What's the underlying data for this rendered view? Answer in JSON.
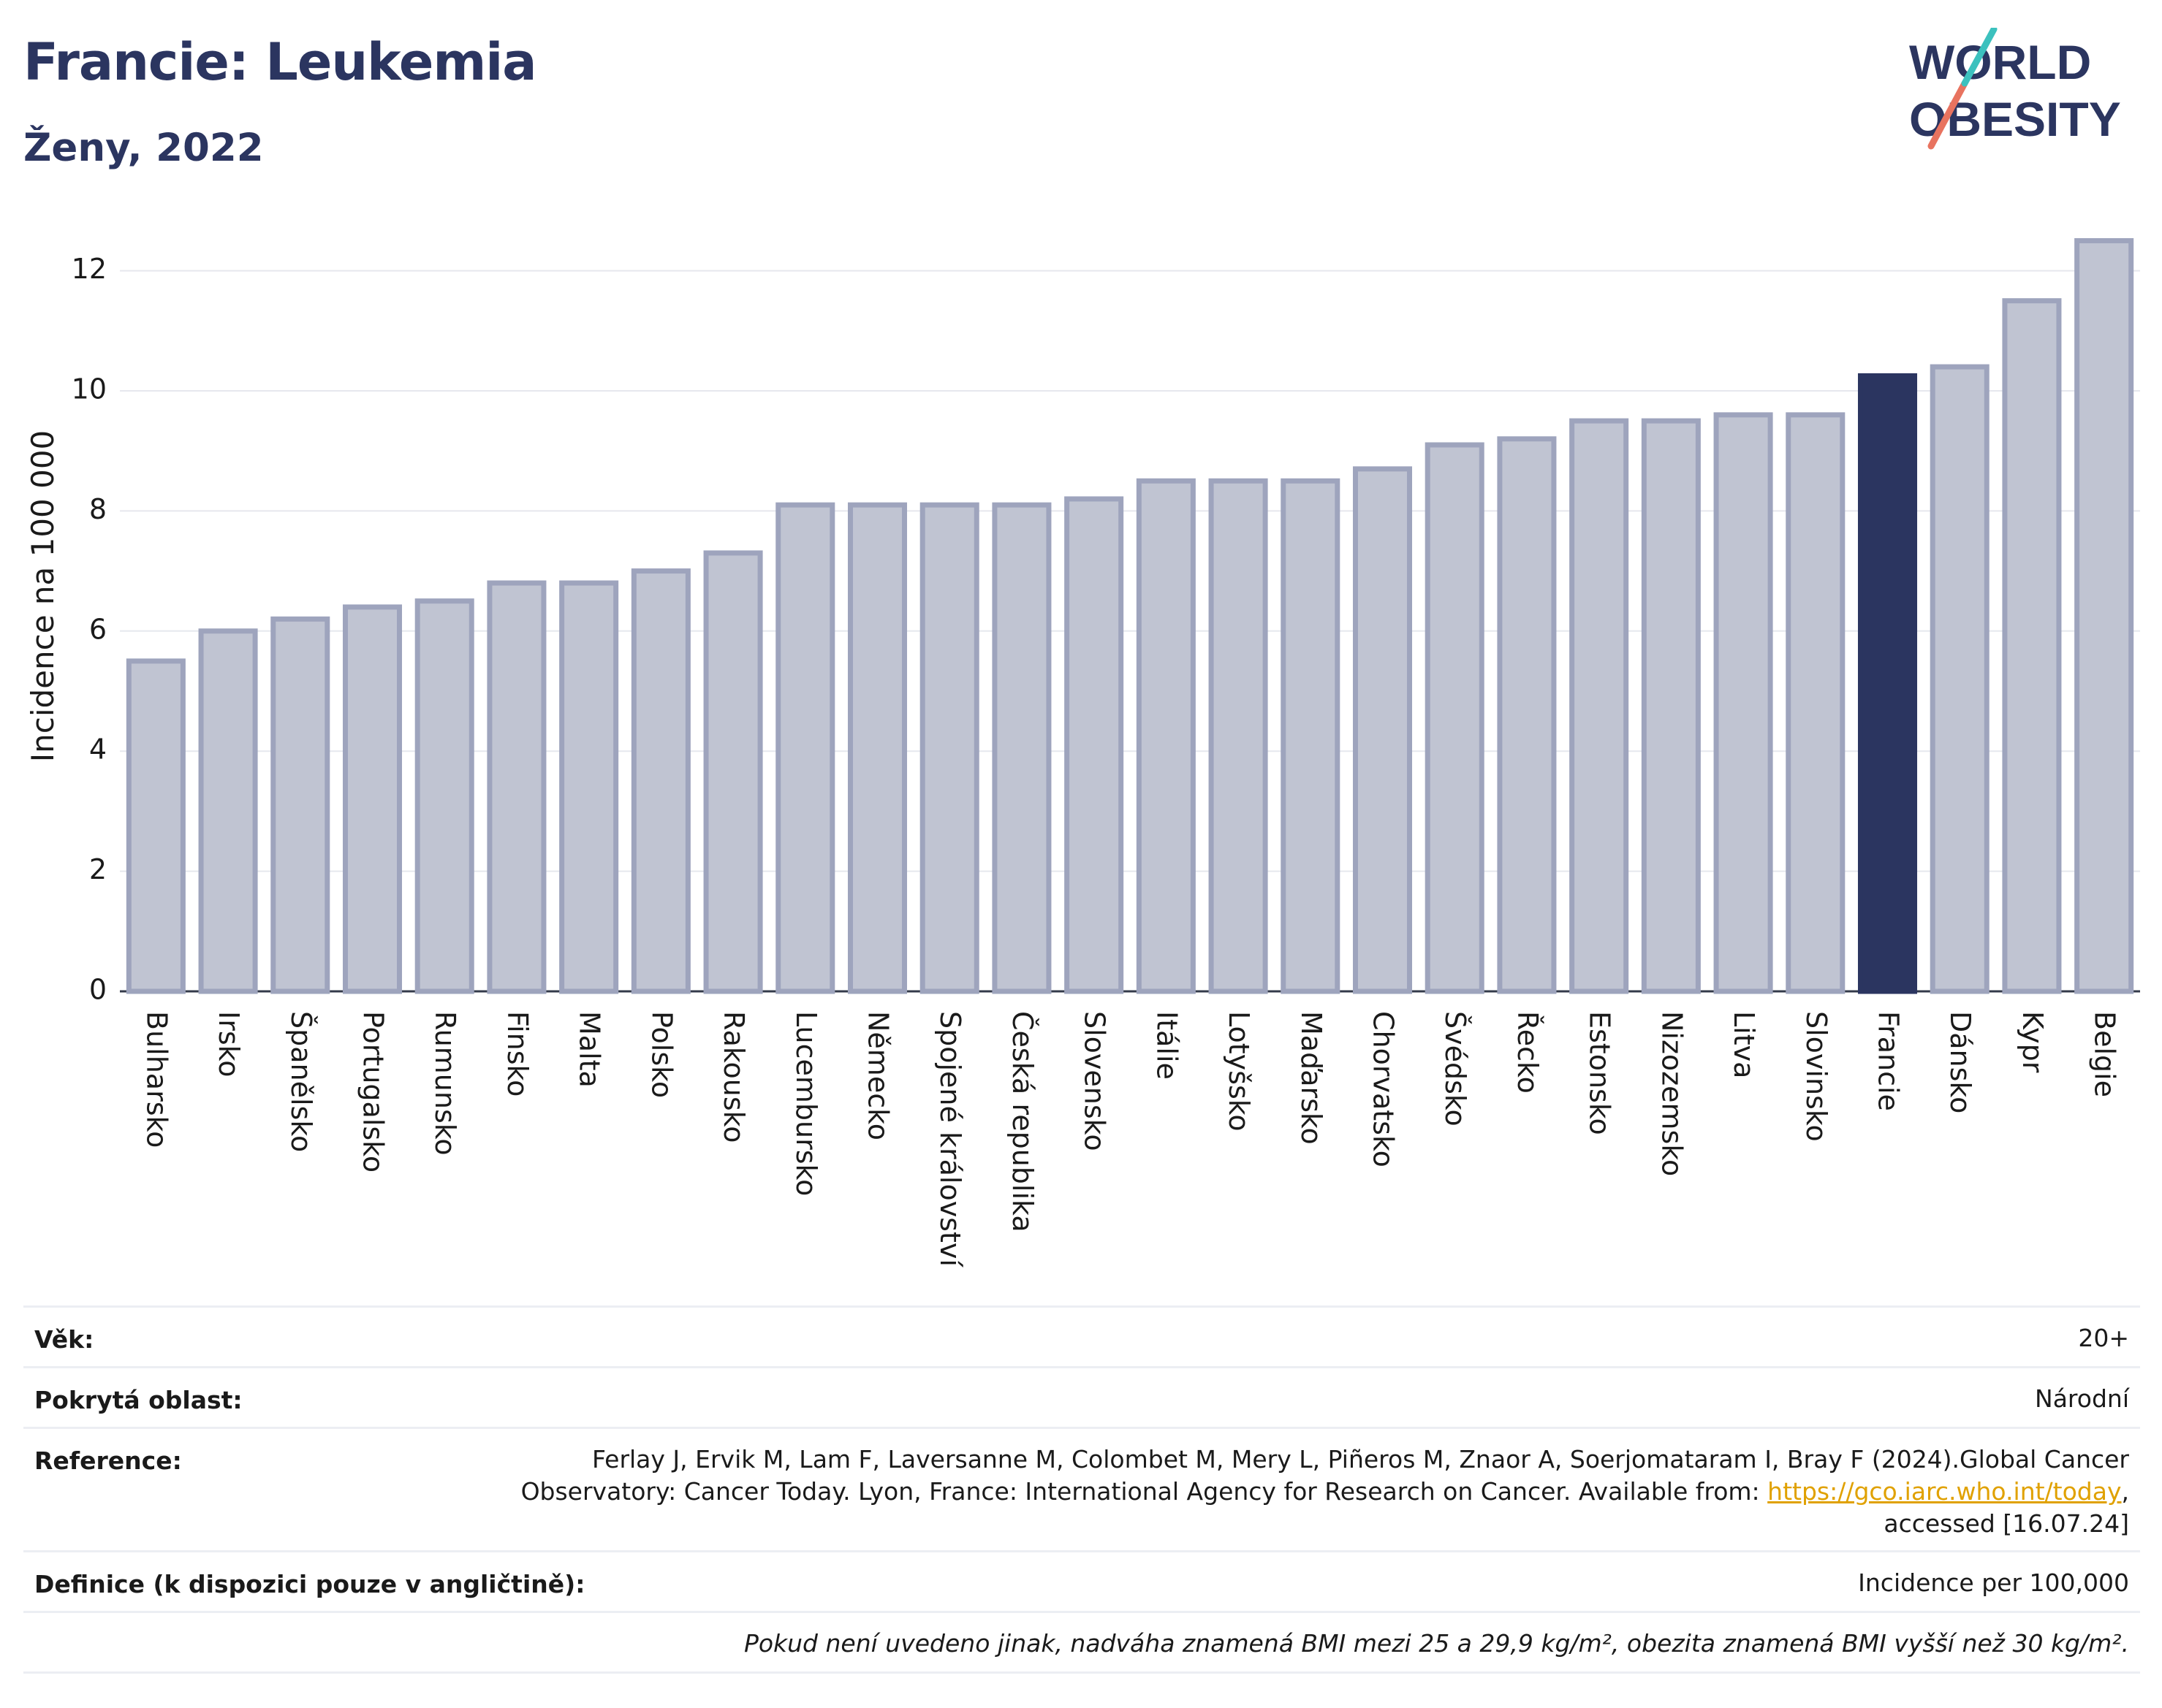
{
  "header": {
    "title": "Francie: Leukemia",
    "subtitle": "Ženy, 2022",
    "logo_line1": "WORLD",
    "logo_line2": "OBESITY"
  },
  "colors": {
    "bar": "#c0c4d2",
    "bar_stroke": "#9ea4bd",
    "highlight": "#2b3560",
    "title": "#2b3560"
  },
  "chart_data": {
    "type": "bar",
    "ylabel": "Incidence na 100 000",
    "ylim": [
      0,
      12.9
    ],
    "yticks": [
      0,
      2,
      4,
      6,
      8,
      10,
      12
    ],
    "grid": true,
    "highlight": "Francie",
    "categories": [
      "Bulharsko",
      "Irsko",
      "Španělsko",
      "Portugalsko",
      "Rumunsko",
      "Finsko",
      "Malta",
      "Polsko",
      "Rakousko",
      "Lucembursko",
      "Německo",
      "Spojené království",
      "Česká republika",
      "Slovensko",
      "Itálie",
      "Lotyšsko",
      "Maďarsko",
      "Chorvatsko",
      "Švédsko",
      "Řecko",
      "Estonsko",
      "Nizozemsko",
      "Litva",
      "Slovinsko",
      "Francie",
      "Dánsko",
      "Kypr",
      "Belgie"
    ],
    "values": [
      5.5,
      6.0,
      6.2,
      6.4,
      6.5,
      6.8,
      6.8,
      7.0,
      7.3,
      8.1,
      8.1,
      8.1,
      8.1,
      8.2,
      8.5,
      8.5,
      8.5,
      8.7,
      9.1,
      9.2,
      9.5,
      9.5,
      9.6,
      9.6,
      10.25,
      10.4,
      11.5,
      12.5
    ]
  },
  "info": {
    "age_label": "Věk:",
    "age_value": "20+",
    "area_label": "Pokrytá oblast:",
    "area_value": "Národní",
    "ref_label": "Reference:",
    "ref_line1": "Ferlay J, Ervik M, Lam F, Laversanne M, Colombet M, Mery L, Piñeros M, Znaor A, Soerjomataram I, Bray F (2024).Global Cancer",
    "ref_line2_pre": "Observatory: Cancer Today. Lyon, France: International Agency for Research on Cancer. Available from: ",
    "ref_link": "https://gco.iarc.who.int/today",
    "ref_line2_post": ",",
    "ref_line3": "accessed [16.07.24]",
    "def_label": "Definice (k dispozici pouze v angličtině):",
    "def_value": "Incidence per 100,000",
    "note": "Pokud není uvedeno jinak, nadváha znamená BMI mezi 25 a 29,9 kg/m², obezita znamená BMI vyšší než 30 kg/m²."
  }
}
